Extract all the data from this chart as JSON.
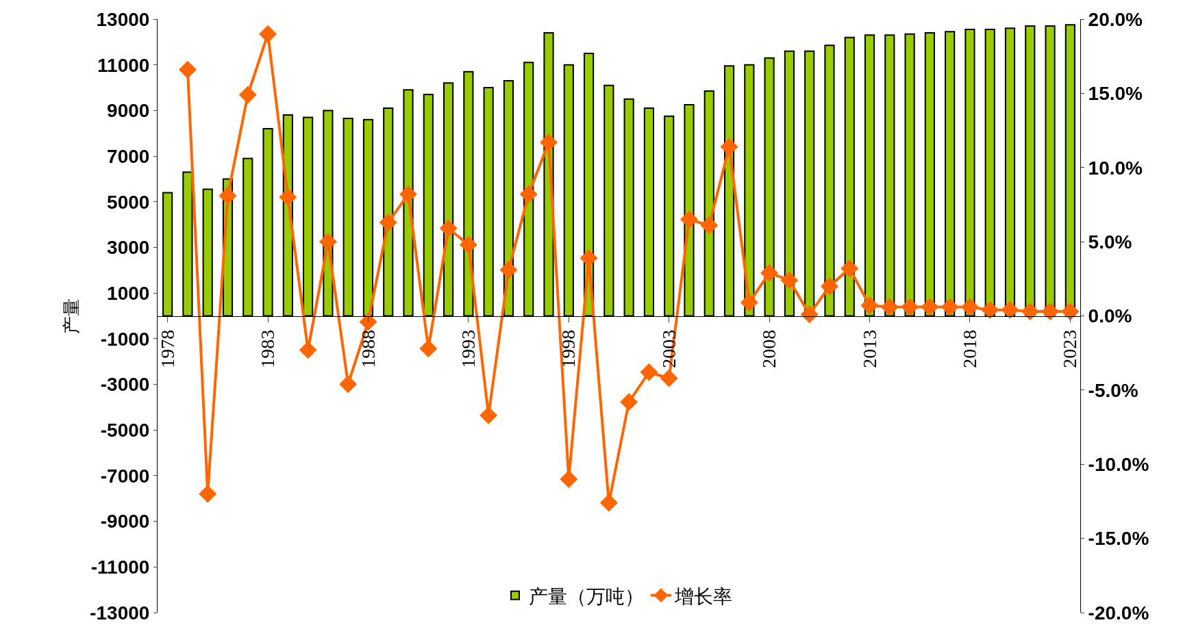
{
  "chart_data": {
    "type": "bar",
    "ylabel": "产量",
    "categories": [
      "1978",
      null,
      null,
      null,
      null,
      "1983",
      null,
      null,
      null,
      null,
      "1988",
      null,
      null,
      null,
      null,
      "1993",
      null,
      null,
      null,
      null,
      "1998",
      null,
      null,
      null,
      null,
      "2003",
      null,
      null,
      null,
      null,
      "2008",
      null,
      null,
      null,
      null,
      "2013",
      null,
      null,
      null,
      null,
      "2018",
      null,
      null,
      null,
      null,
      "2023"
    ],
    "series": [
      {
        "name": "产量（万吨）",
        "color": "#99cc00",
        "values": [
          5400,
          6300,
          5550,
          6000,
          6900,
          8200,
          8800,
          8700,
          9000,
          8650,
          8600,
          9100,
          9900,
          9700,
          10200,
          10700,
          10000,
          10300,
          11100,
          12400,
          11000,
          11500,
          10100,
          9500,
          9100,
          8750,
          9250,
          9850,
          10950,
          11000,
          11300,
          11600,
          11600,
          11850,
          12200,
          12300,
          12300,
          12350,
          12400,
          12450,
          12550,
          12550,
          12600,
          12700,
          12700,
          12750
        ]
      },
      {
        "name": "增长率",
        "type": "line",
        "axis": "y2",
        "color": "#ff6600",
        "marker": "diamond",
        "line_style": "solid",
        "values": [
          null,
          16.6,
          -12.0,
          8.1,
          14.9,
          19.0,
          8.0,
          -2.3,
          5.0,
          -4.6,
          -0.4,
          6.3,
          8.2,
          -2.2,
          5.9,
          4.8,
          -6.7,
          3.1,
          8.2,
          11.7,
          -11.0,
          3.9,
          -12.6,
          -5.8,
          -3.8,
          -4.2,
          6.5,
          6.1,
          11.4,
          0.9,
          2.9,
          2.4,
          0.1,
          2.0,
          3.2,
          0.7,
          0.6,
          0.6,
          0.6,
          0.6,
          0.6,
          0.4,
          0.4,
          0.3,
          0.3,
          0.3
        ]
      }
    ],
    "ylim": [
      -13000,
      13000
    ],
    "yticks": [
      -13000,
      -11000,
      -9000,
      -7000,
      -5000,
      -3000,
      -1000,
      1000,
      3000,
      5000,
      7000,
      9000,
      11000,
      13000
    ],
    "y2lim": [
      -20,
      20
    ],
    "y2ticks": [
      {
        "value": -20,
        "label": "-20.0%"
      },
      {
        "value": -15,
        "label": "-15.0%"
      },
      {
        "value": -10,
        "label": "-10.0%"
      },
      {
        "value": -5,
        "label": "-5.0%"
      },
      {
        "value": 0,
        "label": "0.0%"
      },
      {
        "value": 5,
        "label": "5.0%"
      },
      {
        "value": 10,
        "label": "10.0%"
      },
      {
        "value": 15,
        "label": "15.0%"
      },
      {
        "value": 20,
        "label": "20.0%"
      }
    ],
    "legend": "bottom"
  }
}
